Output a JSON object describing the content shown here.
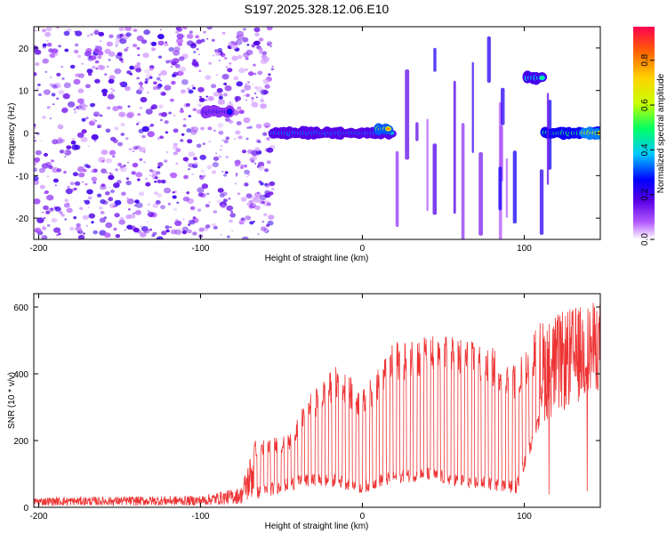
{
  "title": "S197.2025.328.12.06.E10",
  "chart_data": [
    {
      "type": "heatmap",
      "name": "spectrogram",
      "xlabel": "Height of straight line (km)",
      "ylabel": "Frequency (Hz)",
      "xlim": [
        -203,
        147
      ],
      "ylim": [
        -25,
        25
      ],
      "xticks": [
        -200,
        -100,
        0,
        100
      ],
      "yticks": [
        -20,
        -10,
        0,
        10,
        20
      ],
      "colorbar": {
        "label": "Normalized spectral amplitude",
        "range": [
          0.0,
          0.95
        ],
        "ticks": [
          0.0,
          0.2,
          0.4,
          0.6,
          0.8
        ],
        "colormap": [
          "#ffffff",
          "#b45aff",
          "#5a00e6",
          "#0000ff",
          "#00c8ff",
          "#00ff64",
          "#c8ff00",
          "#ffd200",
          "#ff6400",
          "#ff0050"
        ]
      },
      "features": [
        {
          "label": "noise region",
          "x_range": [
            -203,
            -55
          ],
          "freq": "broadband",
          "amplitude": 0.15
        },
        {
          "label": "tone",
          "x_range": [
            -97,
            -82
          ],
          "freq": 5,
          "amplitude": 0.35
        },
        {
          "label": "main carrier",
          "x_range": [
            -55,
            18
          ],
          "freq": 0,
          "amplitude": 0.5
        },
        {
          "label": "carrier peak",
          "x_range": [
            10,
            16
          ],
          "freq": 1,
          "amplitude": 0.85
        },
        {
          "label": "tone",
          "x_range": [
            102,
            111
          ],
          "freq": 13,
          "amplitude": 0.55
        },
        {
          "label": "main carrier",
          "x_range": [
            113,
            147
          ],
          "freq": 0,
          "amplitude": 0.7
        },
        {
          "label": "carrier peak",
          "x_range": [
            137,
            147
          ],
          "freq": 0,
          "amplitude": 0.9
        }
      ]
    },
    {
      "type": "line",
      "name": "snr",
      "xlabel": "Height of straight line (km)",
      "ylabel": "SNR (10 * v/v)",
      "xlim": [
        -203,
        147
      ],
      "ylim": [
        0,
        640
      ],
      "xticks": [
        -200,
        -100,
        0,
        100
      ],
      "yticks": [
        0,
        200,
        400,
        600
      ],
      "series": [
        {
          "name": "SNR",
          "color": "#ee3333",
          "envelope": [
            {
              "x": -203,
              "low": 5,
              "high": 30
            },
            {
              "x": -100,
              "low": 5,
              "high": 35
            },
            {
              "x": -75,
              "low": 10,
              "high": 60
            },
            {
              "x": -67,
              "low": 20,
              "high": 200
            },
            {
              "x": -45,
              "low": 50,
              "high": 220
            },
            {
              "x": -35,
              "low": 60,
              "high": 330
            },
            {
              "x": -15,
              "low": 60,
              "high": 430
            },
            {
              "x": 0,
              "low": 40,
              "high": 350
            },
            {
              "x": 10,
              "low": 60,
              "high": 420
            },
            {
              "x": 20,
              "low": 70,
              "high": 500
            },
            {
              "x": 40,
              "low": 80,
              "high": 520
            },
            {
              "x": 60,
              "low": 60,
              "high": 510
            },
            {
              "x": 80,
              "low": 50,
              "high": 480
            },
            {
              "x": 95,
              "low": 40,
              "high": 430
            },
            {
              "x": 110,
              "low": 250,
              "high": 560
            },
            {
              "x": 130,
              "low": 300,
              "high": 600
            },
            {
              "x": 147,
              "low": 350,
              "high": 620
            }
          ]
        }
      ]
    }
  ]
}
